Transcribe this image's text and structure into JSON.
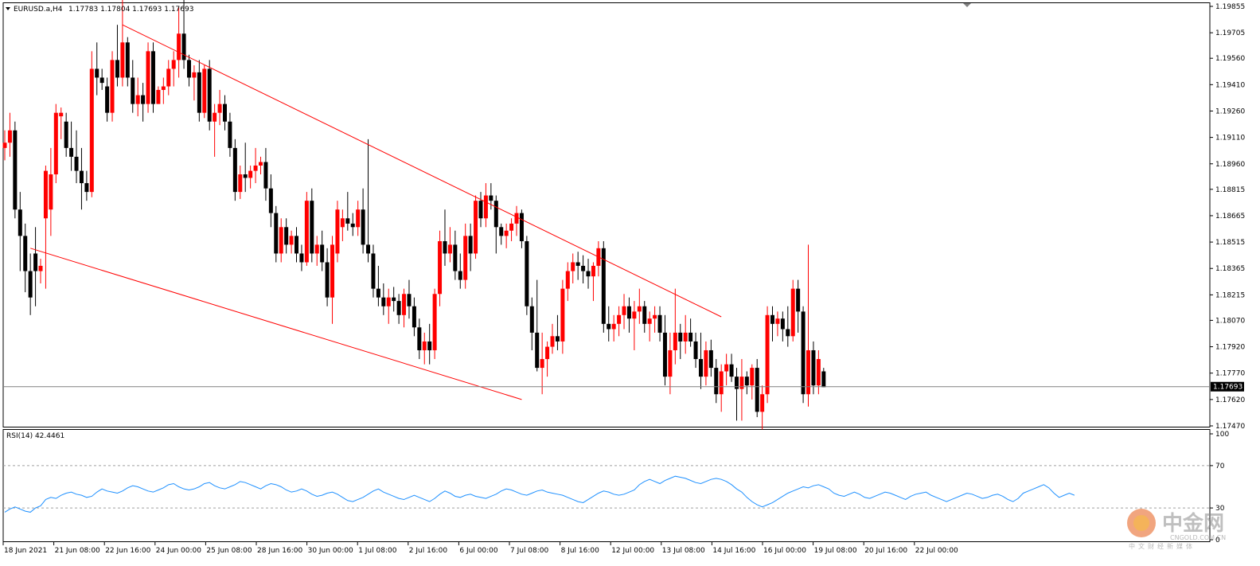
{
  "header": {
    "symbol_label": "EURUSD.a,H4",
    "ohlc_label": "1.17783 1.17804 1.17693 1.17693",
    "collapse_icon": "triangle-down-icon"
  },
  "rsi_panel": {
    "label": "RSI(14) 42.4461",
    "levels": [
      "100",
      "70",
      "30",
      "0"
    ]
  },
  "watermark": {
    "brand": "中金网",
    "tagline": "中文财经新媒体",
    "url": "CNGOLD.COM.CN"
  },
  "colors": {
    "bull": "#ff0000",
    "bear": "#000000",
    "neutral_candle": "#00cc00",
    "trendline": "#ff0000",
    "rsi_line": "#1e90ff",
    "current_price_box": "#000000",
    "grid_dashed": "#a0a0a0"
  },
  "chart_data": [
    {
      "type": "candlestick",
      "symbol": "EURUSD.a",
      "timeframe": "H4",
      "price_ticks": [
        "1.19855",
        "1.19705",
        "1.19560",
        "1.19410",
        "1.19260",
        "1.19110",
        "1.18960",
        "1.18815",
        "1.18665",
        "1.18515",
        "1.18365",
        "1.18215",
        "1.18070",
        "1.17920",
        "1.17770",
        "1.17620",
        "1.17470"
      ],
      "current_price": "1.17693",
      "ylim": [
        1.1747,
        1.19855
      ],
      "time_ticks": [
        "18 Jun 2021",
        "21 Jun 08:00",
        "22 Jun 16:00",
        "24 Jun 00:00",
        "25 Jun 08:00",
        "28 Jun 16:00",
        "30 Jun 00:00",
        "1 Jul 08:00",
        "2 Jul 16:00",
        "6 Jul 00:00",
        "7 Jul 08:00",
        "8 Jul 16:00",
        "12 Jul 00:00",
        "13 Jul 08:00",
        "14 Jul 16:00",
        "16 Jul 00:00",
        "19 Jul 08:00",
        "20 Jul 16:00",
        "22 Jul 00:00"
      ],
      "candles": [
        [
          1.1905,
          1.1915,
          1.1898,
          1.1908
        ],
        [
          1.1908,
          1.1925,
          1.19,
          1.1915
        ],
        [
          1.1915,
          1.192,
          1.1865,
          1.187
        ],
        [
          1.187,
          1.188,
          1.1835,
          1.1855
        ],
        [
          1.1855,
          1.1862,
          1.1823,
          1.1835
        ],
        [
          1.1835,
          1.1845,
          1.181,
          1.182
        ],
        [
          1.1845,
          1.186,
          1.1815,
          1.1835
        ],
        [
          1.1835,
          1.1842,
          1.1828,
          1.1838
        ],
        [
          1.1865,
          1.1895,
          1.1825,
          1.1892
        ],
        [
          1.187,
          1.1905,
          1.1855,
          1.189
        ],
        [
          1.189,
          1.193,
          1.1885,
          1.1925
        ],
        [
          1.1923,
          1.1928,
          1.191,
          1.1925
        ],
        [
          1.192,
          1.1925,
          1.19,
          1.1905
        ],
        [
          1.1905,
          1.192,
          1.1892,
          1.19
        ],
        [
          1.19,
          1.1915,
          1.1885,
          1.1892
        ],
        [
          1.1892,
          1.1905,
          1.187,
          1.1885
        ],
        [
          1.1885,
          1.1892,
          1.1875,
          1.188
        ],
        [
          1.188,
          1.196,
          1.1877,
          1.195
        ],
        [
          1.195,
          1.1965,
          1.1935,
          1.1945
        ],
        [
          1.1945,
          1.195,
          1.1938,
          1.1942
        ],
        [
          1.194,
          1.1945,
          1.192,
          1.1925
        ],
        [
          1.1925,
          1.196,
          1.192,
          1.1955
        ],
        [
          1.1955,
          1.1975,
          1.194,
          1.1945
        ],
        [
          1.1945,
          1.1995,
          1.194,
          1.1965
        ],
        [
          1.1965,
          1.1968,
          1.194,
          1.1945
        ],
        [
          1.1945,
          1.1955,
          1.1925,
          1.193
        ],
        [
          1.193,
          1.1945,
          1.1923,
          1.1935
        ],
        [
          1.1935,
          1.1942,
          1.192,
          1.193
        ],
        [
          1.193,
          1.1965,
          1.1925,
          1.196
        ],
        [
          1.196,
          1.1965,
          1.1925,
          1.193
        ],
        [
          1.193,
          1.194,
          1.1932,
          1.1938
        ],
        [
          1.1938,
          1.1945,
          1.193,
          1.194
        ],
        [
          1.194,
          1.1955,
          1.1935,
          1.195
        ],
        [
          1.195,
          1.196,
          1.194,
          1.1955
        ],
        [
          1.1955,
          1.1985,
          1.1945,
          1.197
        ],
        [
          1.197,
          1.199,
          1.195,
          1.1955
        ],
        [
          1.1955,
          1.1958,
          1.194,
          1.1945
        ],
        [
          1.1945,
          1.1952,
          1.1932,
          1.1948
        ],
        [
          1.1948,
          1.1955,
          1.192,
          1.1925
        ],
        [
          1.1925,
          1.1952,
          1.1922,
          1.195
        ],
        [
          1.195,
          1.1955,
          1.1915,
          1.192
        ],
        [
          1.192,
          1.193,
          1.19,
          1.1925
        ],
        [
          1.1925,
          1.1938,
          1.1918,
          1.193
        ],
        [
          1.193,
          1.1935,
          1.1915,
          1.192
        ],
        [
          1.192,
          1.1925,
          1.19,
          1.1905
        ],
        [
          1.1905,
          1.191,
          1.1875,
          1.188
        ],
        [
          1.188,
          1.1895,
          1.1876,
          1.189
        ],
        [
          1.189,
          1.1908,
          1.188,
          1.1888
        ],
        [
          1.1888,
          1.1895,
          1.1882,
          1.1892
        ],
        [
          1.1892,
          1.1905,
          1.1885,
          1.1895
        ],
        [
          1.1895,
          1.19,
          1.189,
          1.1897
        ],
        [
          1.1897,
          1.1905,
          1.1875,
          1.1882
        ],
        [
          1.1882,
          1.189,
          1.186,
          1.1868
        ],
        [
          1.1868,
          1.1872,
          1.184,
          1.1845
        ],
        [
          1.1845,
          1.1865,
          1.184,
          1.186
        ],
        [
          1.186,
          1.1865,
          1.1845,
          1.185
        ],
        [
          1.185,
          1.1858,
          1.1845,
          1.1855
        ],
        [
          1.1855,
          1.186,
          1.184,
          1.1845
        ],
        [
          1.1845,
          1.185,
          1.1835,
          1.184
        ],
        [
          1.184,
          1.188,
          1.1838,
          1.1875
        ],
        [
          1.1875,
          1.1882,
          1.184,
          1.1845
        ],
        [
          1.1845,
          1.1855,
          1.1838,
          1.185
        ],
        [
          1.185,
          1.1858,
          1.1835,
          1.184
        ],
        [
          1.184,
          1.1848,
          1.1815,
          1.182
        ],
        [
          1.182,
          1.1855,
          1.1805,
          1.185
        ],
        [
          1.1845,
          1.1875,
          1.184,
          1.187
        ],
        [
          1.186,
          1.187,
          1.1852,
          1.1865
        ],
        [
          1.1865,
          1.188,
          1.1858,
          1.1862
        ],
        [
          1.1862,
          1.1868,
          1.1855,
          1.186
        ],
        [
          1.186,
          1.1875,
          1.1855,
          1.187
        ],
        [
          1.187,
          1.1882,
          1.1845,
          1.185
        ],
        [
          1.185,
          1.191,
          1.184,
          1.1845
        ],
        [
          1.1845,
          1.185,
          1.182,
          1.1825
        ],
        [
          1.1825,
          1.1838,
          1.1815,
          1.182
        ],
        [
          1.182,
          1.1828,
          1.181,
          1.1815
        ],
        [
          1.1815,
          1.1825,
          1.1805,
          1.182
        ],
        [
          1.182,
          1.1826,
          1.1812,
          1.1818
        ],
        [
          1.1818,
          1.1822,
          1.1805,
          1.181
        ],
        [
          1.181,
          1.1825,
          1.1803,
          1.1822
        ],
        [
          1.1822,
          1.183,
          1.1808,
          1.1815
        ],
        [
          1.1815,
          1.182,
          1.1798,
          1.1803
        ],
        [
          1.1803,
          1.1808,
          1.1785,
          1.179
        ],
        [
          1.179,
          1.18,
          1.1782,
          1.1795
        ],
        [
          1.1795,
          1.1805,
          1.1782,
          1.179
        ],
        [
          1.179,
          1.1825,
          1.1785,
          1.1822
        ],
        [
          1.1822,
          1.1858,
          1.1815,
          1.1852
        ],
        [
          1.1852,
          1.187,
          1.1838,
          1.1845
        ],
        [
          1.1845,
          1.186,
          1.184,
          1.185
        ],
        [
          1.185,
          1.1858,
          1.183,
          1.1835
        ],
        [
          1.1835,
          1.1845,
          1.1825,
          1.183
        ],
        [
          1.183,
          1.1862,
          1.1825,
          1.1855
        ],
        [
          1.1855,
          1.1862,
          1.1835,
          1.1845
        ],
        [
          1.1845,
          1.1878,
          1.1842,
          1.1875
        ],
        [
          1.1875,
          1.188,
          1.186,
          1.1865
        ],
        [
          1.1865,
          1.1885,
          1.186,
          1.1878
        ],
        [
          1.1878,
          1.1885,
          1.187,
          1.1875
        ],
        [
          1.1875,
          1.1878,
          1.1845,
          1.186
        ],
        [
          1.186,
          1.1862,
          1.185,
          1.1855
        ],
        [
          1.1855,
          1.1862,
          1.1848,
          1.1858
        ],
        [
          1.1858,
          1.1865,
          1.1852,
          1.1862
        ],
        [
          1.1862,
          1.1872,
          1.1855,
          1.1868
        ],
        [
          1.1868,
          1.187,
          1.1848,
          1.1852
        ],
        [
          1.1852,
          1.1855,
          1.181,
          1.1815
        ],
        [
          1.1815,
          1.182,
          1.179,
          1.18
        ],
        [
          1.18,
          1.183,
          1.1778,
          1.178
        ],
        [
          1.178,
          1.18,
          1.1765,
          1.1785
        ],
        [
          1.1785,
          1.1795,
          1.1775,
          1.1792
        ],
        [
          1.1792,
          1.1805,
          1.1788,
          1.1798
        ],
        [
          1.1798,
          1.181,
          1.179,
          1.1795
        ],
        [
          1.1795,
          1.183,
          1.1788,
          1.1825
        ],
        [
          1.1825,
          1.184,
          1.1818,
          1.1835
        ],
        [
          1.1835,
          1.1845,
          1.1828,
          1.184
        ],
        [
          1.184,
          1.1846,
          1.183,
          1.1838
        ],
        [
          1.1838,
          1.1844,
          1.1828,
          1.1835
        ],
        [
          1.1835,
          1.1842,
          1.1825,
          1.1832
        ],
        [
          1.1832,
          1.184,
          1.1818,
          1.1838
        ],
        [
          1.1838,
          1.1852,
          1.1832,
          1.1848
        ],
        [
          1.1848,
          1.1852,
          1.18,
          1.1805
        ],
        [
          1.1805,
          1.1815,
          1.1795,
          1.1802
        ],
        [
          1.1802,
          1.181,
          1.1795,
          1.1805
        ],
        [
          1.1805,
          1.1815,
          1.1798,
          1.181
        ],
        [
          1.181,
          1.1822,
          1.1802,
          1.1815
        ],
        [
          1.1815,
          1.182,
          1.18,
          1.1808
        ],
        [
          1.1808,
          1.1818,
          1.179,
          1.1812
        ],
        [
          1.1812,
          1.1825,
          1.1805,
          1.1815
        ],
        [
          1.1815,
          1.1818,
          1.18,
          1.1805
        ],
        [
          1.1805,
          1.1812,
          1.1795,
          1.1808
        ],
        [
          1.1808,
          1.1815,
          1.18,
          1.181
        ],
        [
          1.181,
          1.1815,
          1.1795,
          1.18
        ],
        [
          1.18,
          1.181,
          1.177,
          1.1775
        ],
        [
          1.1775,
          1.18,
          1.1765,
          1.179
        ],
        [
          1.179,
          1.1825,
          1.1782,
          1.18
        ],
        [
          1.18,
          1.1805,
          1.1785,
          1.1795
        ],
        [
          1.1795,
          1.181,
          1.1788,
          1.18
        ],
        [
          1.18,
          1.1808,
          1.1792,
          1.1795
        ],
        [
          1.1795,
          1.18,
          1.178,
          1.1785
        ],
        [
          1.1785,
          1.18,
          1.1768,
          1.1775
        ],
        [
          1.1775,
          1.1795,
          1.177,
          1.179
        ],
        [
          1.179,
          1.1796,
          1.1775,
          1.178
        ],
        [
          1.178,
          1.1785,
          1.176,
          1.1765
        ],
        [
          1.1765,
          1.1782,
          1.1755,
          1.1778
        ],
        [
          1.1778,
          1.1788,
          1.177,
          1.1782
        ],
        [
          1.1782,
          1.1788,
          1.1772,
          1.1775
        ],
        [
          1.1775,
          1.178,
          1.175,
          1.1768
        ],
        [
          1.1768,
          1.1785,
          1.175,
          1.1775
        ],
        [
          1.1775,
          1.1778,
          1.1765,
          1.177
        ],
        [
          1.177,
          1.1782,
          1.1762,
          1.178
        ],
        [
          1.178,
          1.1785,
          1.1752,
          1.1755
        ],
        [
          1.1755,
          1.177,
          1.1745,
          1.1765
        ],
        [
          1.1765,
          1.1815,
          1.176,
          1.181
        ],
        [
          1.181,
          1.1815,
          1.1795,
          1.1805
        ],
        [
          1.1805,
          1.1812,
          1.1798,
          1.1808
        ],
        [
          1.1808,
          1.1812,
          1.1795,
          1.1802
        ],
        [
          1.1802,
          1.1815,
          1.1792,
          1.1798
        ],
        [
          1.1798,
          1.183,
          1.1795,
          1.1825
        ],
        [
          1.1825,
          1.183,
          1.18,
          1.1812
        ],
        [
          1.1812,
          1.1815,
          1.176,
          1.1765
        ],
        [
          1.1765,
          1.185,
          1.1758,
          1.179
        ],
        [
          1.179,
          1.1795,
          1.1765,
          1.177
        ],
        [
          1.177,
          1.179,
          1.1765,
          1.1785
        ],
        [
          1.1778,
          1.178,
          1.1769,
          1.1769
        ]
      ],
      "trendlines": [
        {
          "from": {
            "index": 23,
            "price": 1.1975
          },
          "to": {
            "index": 140,
            "price": 1.1809
          }
        },
        {
          "from": {
            "index": 5,
            "price": 1.1848
          },
          "to": {
            "index": 101,
            "price": 1.1762
          }
        }
      ]
    },
    {
      "type": "line",
      "name": "RSI(14)",
      "ylim": [
        0,
        100
      ],
      "levels": [
        30,
        70
      ],
      "values": [
        26,
        29,
        31,
        29,
        27,
        26,
        30,
        32,
        38,
        40,
        39,
        42,
        44,
        45,
        43,
        42,
        40,
        41,
        45,
        48,
        46,
        45,
        44,
        46,
        49,
        51,
        50,
        48,
        46,
        45,
        47,
        49,
        52,
        53,
        50,
        48,
        47,
        48,
        50,
        53,
        54,
        51,
        49,
        48,
        50,
        52,
        55,
        54,
        52,
        50,
        48,
        51,
        53,
        52,
        50,
        47,
        45,
        46,
        48,
        46,
        43,
        41,
        42,
        44,
        45,
        43,
        40,
        37,
        36,
        38,
        40,
        43,
        46,
        48,
        45,
        43,
        41,
        39,
        38,
        40,
        42,
        40,
        38,
        36,
        39,
        43,
        46,
        44,
        41,
        40,
        42,
        43,
        41,
        40,
        39,
        41,
        43,
        46,
        48,
        47,
        45,
        43,
        42,
        44,
        46,
        47,
        45,
        44,
        43,
        42,
        40,
        38,
        36,
        35,
        38,
        41,
        44,
        46,
        45,
        43,
        42,
        43,
        45,
        47,
        52,
        55,
        57,
        55,
        53,
        56,
        58,
        60,
        59,
        58,
        56,
        54,
        53,
        55,
        57,
        58,
        57,
        55,
        52,
        48,
        45,
        40,
        36,
        33,
        31,
        33,
        35,
        38,
        41,
        44,
        46,
        48,
        50,
        49,
        51,
        52,
        50,
        48,
        44,
        42,
        41,
        43,
        45,
        43,
        40,
        39,
        41,
        43,
        45,
        44,
        42,
        40,
        38,
        41,
        43,
        44,
        45,
        42,
        40,
        38,
        36,
        38,
        40,
        42,
        44,
        43,
        41,
        39,
        40,
        42,
        43,
        41,
        38,
        36,
        39,
        44,
        46,
        48,
        50,
        52,
        49,
        44,
        40,
        42,
        44,
        42
      ]
    }
  ]
}
